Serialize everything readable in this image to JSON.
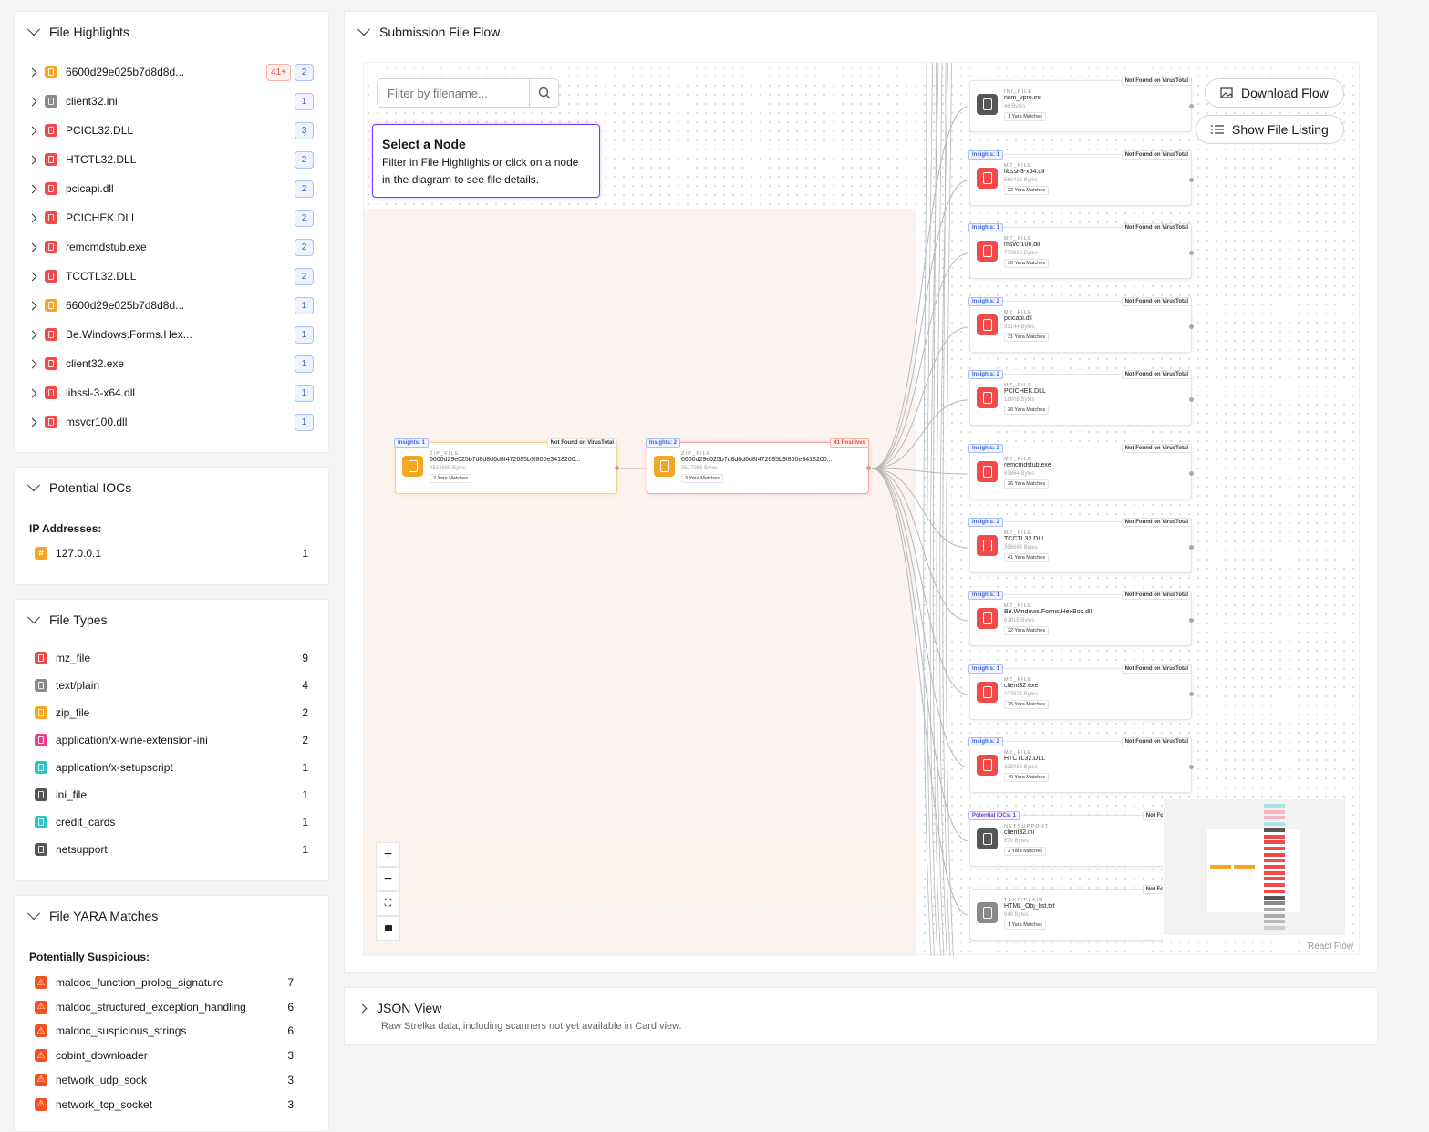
{
  "file_highlights": {
    "title": "File Highlights",
    "items": [
      {
        "name": "6600d29e025b7d8d8d...",
        "color": "#f5a623",
        "badges": [
          {
            "text": "41+",
            "kind": "red"
          },
          {
            "text": "2",
            "kind": "blue"
          }
        ]
      },
      {
        "name": "client32.ini",
        "color": "#8a8a8a",
        "badges": [
          {
            "text": "1",
            "kind": "purple"
          }
        ]
      },
      {
        "name": "PCICL32.DLL",
        "color": "#f04a4a",
        "badges": [
          {
            "text": "3",
            "kind": "blue"
          }
        ]
      },
      {
        "name": "HTCTL32.DLL",
        "color": "#f04a4a",
        "badges": [
          {
            "text": "2",
            "kind": "blue"
          }
        ]
      },
      {
        "name": "pcicapi.dll",
        "color": "#f04a4a",
        "badges": [
          {
            "text": "2",
            "kind": "blue"
          }
        ]
      },
      {
        "name": "PCICHEK.DLL",
        "color": "#f04a4a",
        "badges": [
          {
            "text": "2",
            "kind": "blue"
          }
        ]
      },
      {
        "name": "remcmdstub.exe",
        "color": "#f04a4a",
        "badges": [
          {
            "text": "2",
            "kind": "blue"
          }
        ]
      },
      {
        "name": "TCCTL32.DLL",
        "color": "#f04a4a",
        "badges": [
          {
            "text": "2",
            "kind": "blue"
          }
        ]
      },
      {
        "name": "6600d29e025b7d8d8d...",
        "color": "#f5a623",
        "badges": [
          {
            "text": "1",
            "kind": "blue"
          }
        ]
      },
      {
        "name": "Be.Windows.Forms.Hex...",
        "color": "#f04a4a",
        "badges": [
          {
            "text": "1",
            "kind": "blue"
          }
        ]
      },
      {
        "name": "client32.exe",
        "color": "#f04a4a",
        "badges": [
          {
            "text": "1",
            "kind": "blue"
          }
        ]
      },
      {
        "name": "libssl-3-x64.dll",
        "color": "#f04a4a",
        "badges": [
          {
            "text": "1",
            "kind": "blue"
          }
        ]
      },
      {
        "name": "msvcr100.dll",
        "color": "#f04a4a",
        "badges": [
          {
            "text": "1",
            "kind": "blue"
          }
        ]
      }
    ]
  },
  "iocs": {
    "title": "Potential IOCs",
    "label": "IP Addresses:",
    "items": [
      {
        "value": "127.0.0.1",
        "count": "1"
      }
    ]
  },
  "file_types": {
    "title": "File Types",
    "items": [
      {
        "name": "mz_file",
        "count": "9",
        "color": "#f04a4a"
      },
      {
        "name": "text/plain",
        "count": "4",
        "color": "#8a8a8a"
      },
      {
        "name": "zip_file",
        "count": "2",
        "color": "#f5a623"
      },
      {
        "name": "application/x-wine-extension-ini",
        "count": "2",
        "color": "#e83e8c"
      },
      {
        "name": "application/x-setupscript",
        "count": "1",
        "color": "#2ec4c4"
      },
      {
        "name": "ini_file",
        "count": "1",
        "color": "#555555"
      },
      {
        "name": "credit_cards",
        "count": "1",
        "color": "#2ec4c4"
      },
      {
        "name": "netsupport",
        "count": "1",
        "color": "#555555"
      }
    ]
  },
  "yara": {
    "title": "File YARA Matches",
    "label": "Potentially Suspicious:",
    "items": [
      {
        "name": "maldoc_function_prolog_signature",
        "count": "7"
      },
      {
        "name": "maldoc_structured_exception_handling",
        "count": "6"
      },
      {
        "name": "maldoc_suspicious_strings",
        "count": "6"
      },
      {
        "name": "cobint_downloader",
        "count": "3"
      },
      {
        "name": "network_udp_sock",
        "count": "3"
      },
      {
        "name": "network_tcp_socket",
        "count": "3"
      }
    ]
  },
  "flow": {
    "title": "Submission File Flow",
    "filter_placeholder": "Filter by filename...",
    "download": "Download Flow",
    "show_listing": "Show File Listing",
    "select_title": "Select a Node",
    "select_text": "Filter in File Highlights or click on a node in the diagram to see file details.",
    "attribution": "React Flow",
    "root_nodes": [
      {
        "type": "ZIP_FILE",
        "name": "6600d29e025b7d8d8d6d8f472685b9f800e3418200...",
        "size": "2514895 Bytes",
        "yara": "2 Yara Matches",
        "left": "Insights: 1",
        "right": "Not Found on VirusTotal",
        "color": "#f5a623"
      },
      {
        "type": "ZIP_FILE",
        "name": "6600d29e025b7d8d8d6d8f472685b9f800e3418200...",
        "size": "2517088 Bytes",
        "yara": "3 Yara Matches",
        "left": "Insights: 2",
        "right": "41 Positives",
        "color": "#f5a623"
      }
    ],
    "child_nodes": [
      {
        "type": "INI_FILE",
        "name": "nsm_vpro.ini",
        "size": "46 Bytes",
        "yara": "1 Yara Matches",
        "left": "",
        "right": "Not Found on VirusTotal",
        "color": "#555555"
      },
      {
        "type": "MZ_FILE",
        "name": "libssl-3-x64.dll",
        "size": "560416 Bytes",
        "yara": "22 Yara Matches",
        "left": "Insights: 1",
        "right": "Not Found on VirusTotal",
        "color": "#f04a4a"
      },
      {
        "type": "MZ_FILE",
        "name": "msvcr100.dll",
        "size": "773968 Bytes",
        "yara": "30 Yara Matches",
        "left": "Insights: 1",
        "right": "Not Found on VirusTotal",
        "color": "#f04a4a"
      },
      {
        "type": "MZ_FILE",
        "name": "pcicapi.dll",
        "size": "33144 Bytes",
        "yara": "31 Yara Matches",
        "left": "Insights: 2",
        "right": "Not Found on VirusTotal",
        "color": "#f04a4a"
      },
      {
        "type": "MZ_FILE",
        "name": "PCICHEK.DLL",
        "size": "18808 Bytes",
        "yara": "26 Yara Matches",
        "left": "Insights: 2",
        "right": "Not Found on VirusTotal",
        "color": "#f04a4a"
      },
      {
        "type": "MZ_FILE",
        "name": "remcmdstub.exe",
        "size": "63864 Bytes",
        "yara": "26 Yara Matches",
        "left": "Insights: 2",
        "right": "Not Found on VirusTotal",
        "color": "#f04a4a"
      },
      {
        "type": "MZ_FILE",
        "name": "TCCTL32.DLL",
        "size": "396664 Bytes",
        "yara": "41 Yara Matches",
        "left": "Insights: 2",
        "right": "Not Found on VirusTotal",
        "color": "#f04a4a"
      },
      {
        "type": "MZ_FILE",
        "name": "Be.Windows.Forms.HexBox.dll",
        "size": "61816 Bytes",
        "yara": "22 Yara Matches",
        "left": "Insights: 1",
        "right": "Not Found on VirusTotal",
        "color": "#f04a4a"
      },
      {
        "type": "MZ_FILE",
        "name": "client32.exe",
        "size": "103824 Bytes",
        "yara": "25 Yara Matches",
        "left": "Insights: 1",
        "right": "Not Found on VirusTotal",
        "color": "#f04a4a"
      },
      {
        "type": "MZ_FILE",
        "name": "HTCTL32.DLL",
        "size": "328056 Bytes",
        "yara": "49 Yara Matches",
        "left": "Insights: 2",
        "right": "Not Found on VirusTotal",
        "color": "#f04a4a"
      },
      {
        "type": "NETSUPPORT",
        "name": "client32.ini",
        "size": "670 Bytes",
        "yara": "2 Yara Matches",
        "left": "Potential IOCs: 1",
        "right": "Not Found on Vi",
        "color": "#555555"
      },
      {
        "type": "TEXT/PLAIN",
        "name": "HTML_Obj_list.txt",
        "size": "948 Bytes",
        "yara": "1 Yara Matches",
        "left": "",
        "right": "Not Found on Vi",
        "color": "#8a8a8a"
      }
    ]
  },
  "json_view": {
    "title": "JSON View",
    "subtitle": "Raw Strelka data, including scanners not yet available in Card view."
  }
}
